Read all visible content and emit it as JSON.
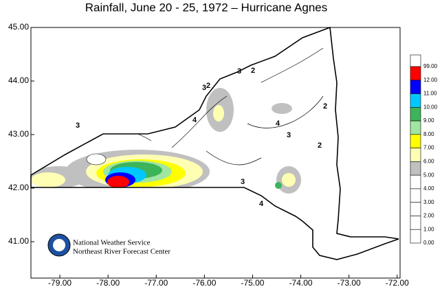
{
  "chart_data": {
    "type": "contour-map",
    "title": "Rainfall, June 20 - 25, 1972 – Hurricane Agnes",
    "xlim": [
      -79.6,
      -71.94
    ],
    "ylim": [
      40.32,
      45.0
    ],
    "xticks": [
      {
        "value": -79,
        "label": "-79.00"
      },
      {
        "value": -78,
        "label": "-78.00"
      },
      {
        "value": -77,
        "label": "-77.00"
      },
      {
        "value": -76,
        "label": "-76.00"
      },
      {
        "value": -75,
        "label": "-75.00"
      },
      {
        "value": -74,
        "label": "-74.00"
      },
      {
        "value": -73,
        "label": "-73.00"
      },
      {
        "value": -72,
        "label": "-72.00"
      }
    ],
    "yticks": [
      {
        "value": 41,
        "label": "41.00"
      },
      {
        "value": 42,
        "label": "42.00"
      },
      {
        "value": 43,
        "label": "43.00"
      },
      {
        "value": 44,
        "label": "44.00"
      },
      {
        "value": 45,
        "label": "45.00"
      }
    ],
    "legend": {
      "levels": [
        "99.00",
        "12.00",
        "11.00",
        "10.00",
        "9.00",
        "8.00",
        "7.00",
        "6.00",
        "5.00",
        "4.00",
        "3.00",
        "2.00",
        "1.00",
        "0.00"
      ],
      "colors": [
        "#ff0000",
        "#0000ff",
        "#00c8ff",
        "#3cb45a",
        "#a0e6a0",
        "#ffff00",
        "#ffffb4",
        "#c0c0c0",
        "#ffffff",
        "#ffffff",
        "#ffffff",
        "#ffffff",
        "#ffffff"
      ]
    },
    "contour_labels": [
      "3",
      "3",
      "3",
      "2",
      "2",
      "2",
      "4",
      "3",
      "4",
      "3",
      "4",
      "2"
    ],
    "credit": {
      "line1": "National Weather Service",
      "line2": "Northeast River Forecast Center"
    }
  }
}
